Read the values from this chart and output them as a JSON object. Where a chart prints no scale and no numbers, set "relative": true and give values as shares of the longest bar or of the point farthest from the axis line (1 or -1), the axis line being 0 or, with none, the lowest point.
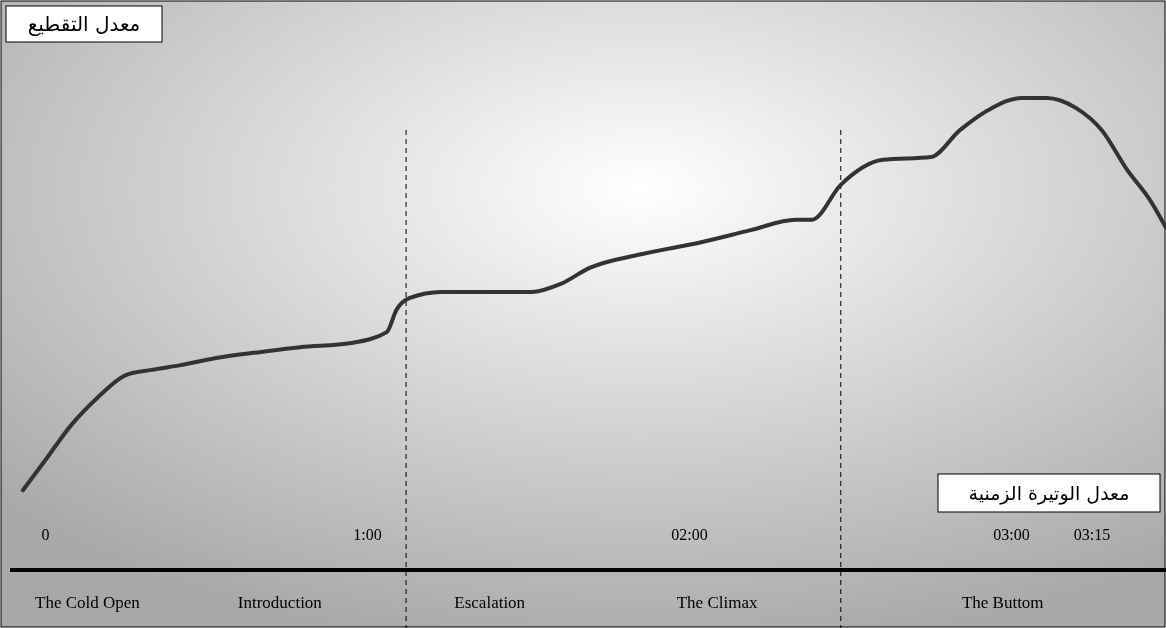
{
  "chart_data": {
    "type": "line",
    "relative": true,
    "xlabel": "معدل الوتيرة الزمنية",
    "ylabel": "معدل التقطيع",
    "x": [
      -0.07,
      0,
      0.08,
      0.16,
      0.25,
      0.33,
      0.42,
      0.53,
      0.67,
      0.79,
      0.95,
      1.06,
      1.09,
      1.13,
      1.23,
      1.32,
      1.51,
      1.6,
      1.69,
      1.85,
      2.04,
      2.19,
      2.33,
      2.38,
      2.47,
      2.6,
      2.75,
      2.84,
      2.94,
      3.03,
      3.11,
      3.2,
      3.28,
      3.36,
      3.43,
      3.48
    ],
    "series": [
      {
        "color": "#333333",
        "values": [
          0.169,
          0.233,
          0.307,
          0.364,
          0.413,
          0.424,
          0.434,
          0.449,
          0.462,
          0.472,
          0.481,
          0.504,
          0.551,
          0.576,
          0.589,
          0.589,
          0.589,
          0.606,
          0.64,
          0.669,
          0.695,
          0.72,
          0.742,
          0.742,
          0.816,
          0.869,
          0.875,
          0.932,
          0.979,
          1,
          1,
          0.979,
          0.932,
          0.847,
          0.784,
          0.725
        ]
      }
    ],
    "xlim": [
      -0.11,
      3.48
    ],
    "xticks": [
      {
        "value": 0,
        "label": "0"
      },
      {
        "value": 1,
        "label": "1:00"
      },
      {
        "value": 2,
        "label": "02:00"
      },
      {
        "value": 3,
        "label": "03:00"
      },
      {
        "value": 3.25,
        "label": "03:15"
      }
    ],
    "tick_labels": "x",
    "line_style": "solid",
    "marker": "none",
    "ref_lines": [
      {
        "axis": "x",
        "value": 1.12,
        "line_style": "dashed",
        "color": "#000000"
      },
      {
        "axis": "x",
        "value": 2.47,
        "line_style": "dashed",
        "color": "#000000"
      }
    ],
    "annotations": [
      "The Cold Open",
      "Introduction",
      "Escalation",
      "The Climax",
      "The Buttom"
    ]
  }
}
